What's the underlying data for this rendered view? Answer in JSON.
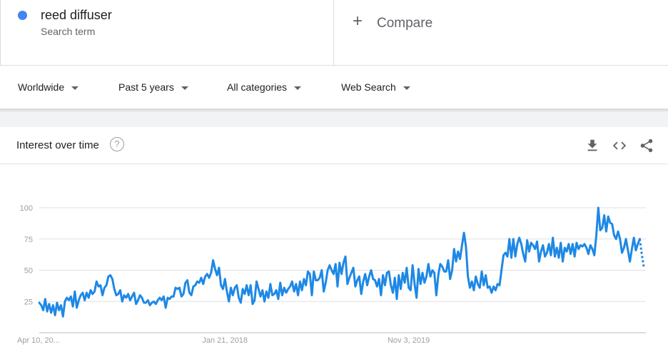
{
  "search_term": {
    "name": "reed diffuser",
    "subtitle": "Search term",
    "color": "#4285f4"
  },
  "compare": {
    "plus": "+",
    "label": "Compare"
  },
  "filters": [
    {
      "label": "Worldwide"
    },
    {
      "label": "Past 5 years"
    },
    {
      "label": "All categories"
    },
    {
      "label": "Web Search"
    }
  ],
  "card": {
    "title": "Interest over time",
    "help": "?"
  },
  "icons": [
    "download-icon",
    "embed-icon",
    "share-icon"
  ],
  "chart_data": {
    "type": "line",
    "title": "Interest over time",
    "xlabel": "",
    "ylabel": "",
    "ylim": [
      0,
      100
    ],
    "grid": true,
    "legend": "none",
    "color": "#1e88e5",
    "y_ticks": [
      "100",
      "75",
      "50",
      "25"
    ],
    "x_tick_labels": [
      "Apr 10, 20...",
      "Jan 21, 2018",
      "Nov 3, 2019"
    ],
    "partial_final_point": true,
    "series": [
      {
        "values": [
          24,
          22,
          18,
          27,
          17,
          23,
          16,
          22,
          14,
          24,
          18,
          22,
          13,
          25,
          28,
          26,
          29,
          21,
          33,
          20,
          26,
          30,
          32,
          26,
          32,
          28,
          34,
          31,
          33,
          41,
          37,
          38,
          30,
          36,
          38,
          45,
          46,
          43,
          35,
          30,
          31,
          34,
          25,
          30,
          28,
          31,
          26,
          29,
          32,
          23,
          26,
          30,
          28,
          24,
          24,
          26,
          22,
          24,
          25,
          23,
          26,
          28,
          26,
          29,
          20,
          28,
          27,
          29,
          29,
          36,
          35,
          36,
          29,
          31,
          40,
          42,
          32,
          30,
          37,
          38,
          41,
          40,
          44,
          39,
          45,
          47,
          44,
          48,
          58,
          51,
          46,
          52,
          38,
          35,
          43,
          33,
          25,
          36,
          30,
          36,
          38,
          28,
          24,
          35,
          31,
          38,
          30,
          38,
          23,
          26,
          41,
          35,
          29,
          34,
          25,
          33,
          28,
          39,
          30,
          31,
          34,
          27,
          40,
          30,
          36,
          32,
          35,
          37,
          41,
          33,
          39,
          30,
          41,
          34,
          43,
          38,
          49,
          47,
          30,
          49,
          42,
          42,
          44,
          50,
          33,
          40,
          50,
          54,
          50,
          47,
          55,
          37,
          56,
          47,
          56,
          61,
          39,
          44,
          48,
          52,
          37,
          42,
          45,
          31,
          41,
          47,
          38,
          45,
          50,
          43,
          42,
          37,
          43,
          30,
          46,
          38,
          48,
          49,
          38,
          32,
          44,
          27,
          46,
          35,
          48,
          40,
          52,
          36,
          34,
          54,
          39,
          28,
          51,
          39,
          48,
          40,
          45,
          55,
          45,
          50,
          48,
          30,
          46,
          55,
          53,
          49,
          49,
          58,
          43,
          50,
          67,
          57,
          65,
          59,
          70,
          80,
          69,
          45,
          36,
          41,
          34,
          45,
          39,
          36,
          49,
          38,
          46,
          36,
          37,
          32,
          37,
          34,
          39,
          38,
          50,
          62,
          64,
          61,
          75,
          60,
          75,
          61,
          71,
          76,
          71,
          63,
          57,
          74,
          65,
          72,
          70,
          67,
          73,
          57,
          65,
          70,
          61,
          64,
          71,
          62,
          76,
          61,
          68,
          60,
          72,
          57,
          68,
          65,
          71,
          63,
          71,
          61,
          72,
          67,
          70,
          69,
          71,
          68,
          63,
          70,
          67,
          62,
          78,
          100,
          82,
          84,
          94,
          81,
          93,
          88,
          87,
          78,
          75,
          81,
          75,
          64,
          68,
          75,
          66,
          57,
          67,
          76,
          66,
          71,
          75
        ],
        "partial_values": [
          75,
          63,
          53
        ]
      }
    ]
  }
}
